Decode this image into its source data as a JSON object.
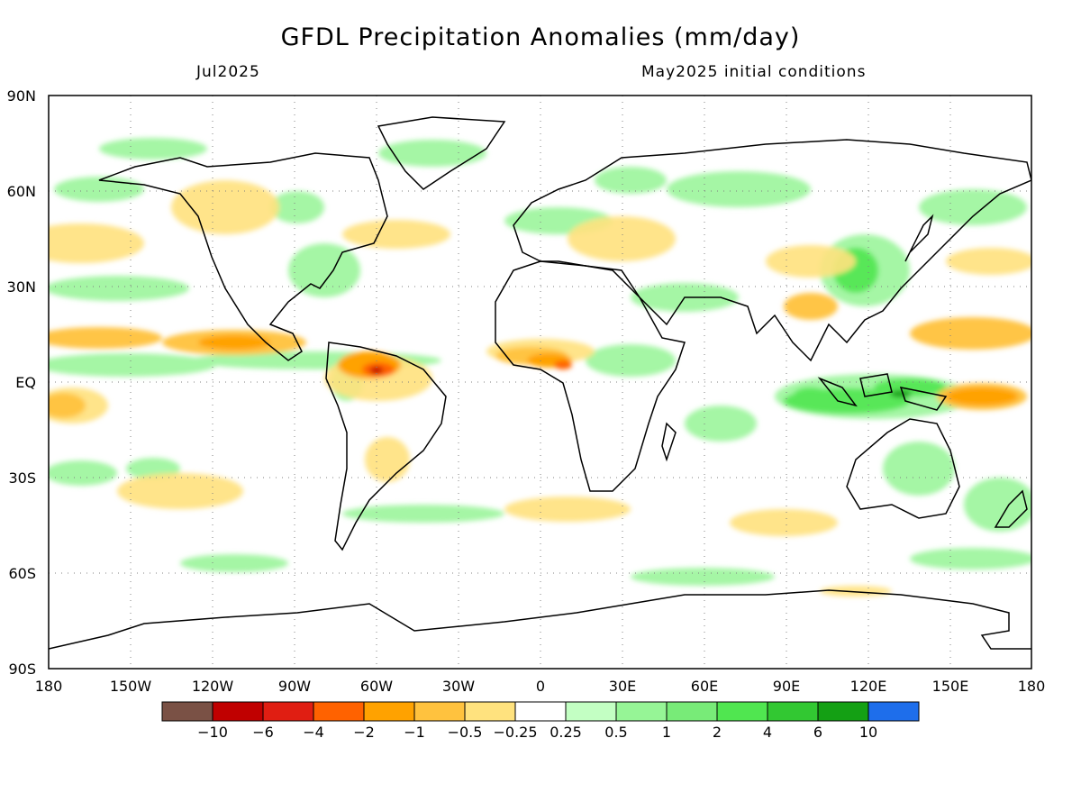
{
  "title": "GFDL Precipitation Anomalies (mm/day)",
  "valid_month": "Jul2025",
  "init_text": "May2025 initial conditions",
  "lat_ticks": [
    "90N",
    "60N",
    "30N",
    "EQ",
    "30S",
    "60S",
    "90S"
  ],
  "lon_ticks": [
    "180",
    "150W",
    "120W",
    "90W",
    "60W",
    "30W",
    "0",
    "30E",
    "60E",
    "90E",
    "120E",
    "150E",
    "180"
  ],
  "colorbar": {
    "colors": [
      "#7a5145",
      "#c00000",
      "#e01e12",
      "#ff6200",
      "#ffa200",
      "#ffc23e",
      "#ffe27e",
      "#ffffff",
      "#c3ffc3",
      "#96f596",
      "#78eb78",
      "#50e650",
      "#32c832",
      "#14a014",
      "#1e6eeb"
    ],
    "labels": [
      "−10",
      "−6",
      "−4",
      "−2",
      "−1",
      "−0.5",
      "−0.25",
      "0.25",
      "0.5",
      "1",
      "2",
      "4",
      "6",
      "10"
    ]
  }
}
